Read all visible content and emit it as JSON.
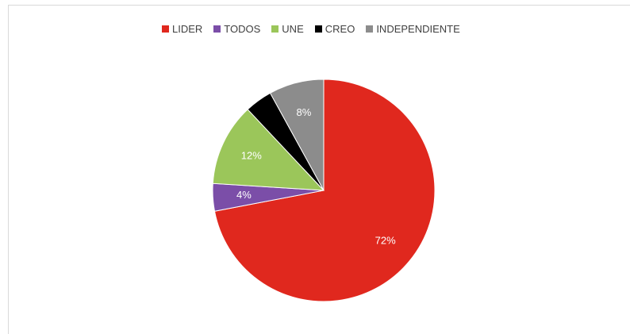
{
  "chart_data": {
    "type": "pie",
    "title": "",
    "legend_position": "top",
    "slices": [
      {
        "name": "LIDER",
        "value": 72,
        "label": "72%",
        "color": "#e0281e"
      },
      {
        "name": "TODOS",
        "value": 4,
        "label": "4%",
        "color": "#7b4ea8"
      },
      {
        "name": "UNE",
        "value": 12,
        "label": "12%",
        "color": "#9bc65a"
      },
      {
        "name": "CREO",
        "value": 4,
        "label": "",
        "color": "#000000"
      },
      {
        "name": "INDEPENDIENTE",
        "value": 8,
        "label": "8%",
        "color": "#8c8c8c"
      }
    ]
  }
}
